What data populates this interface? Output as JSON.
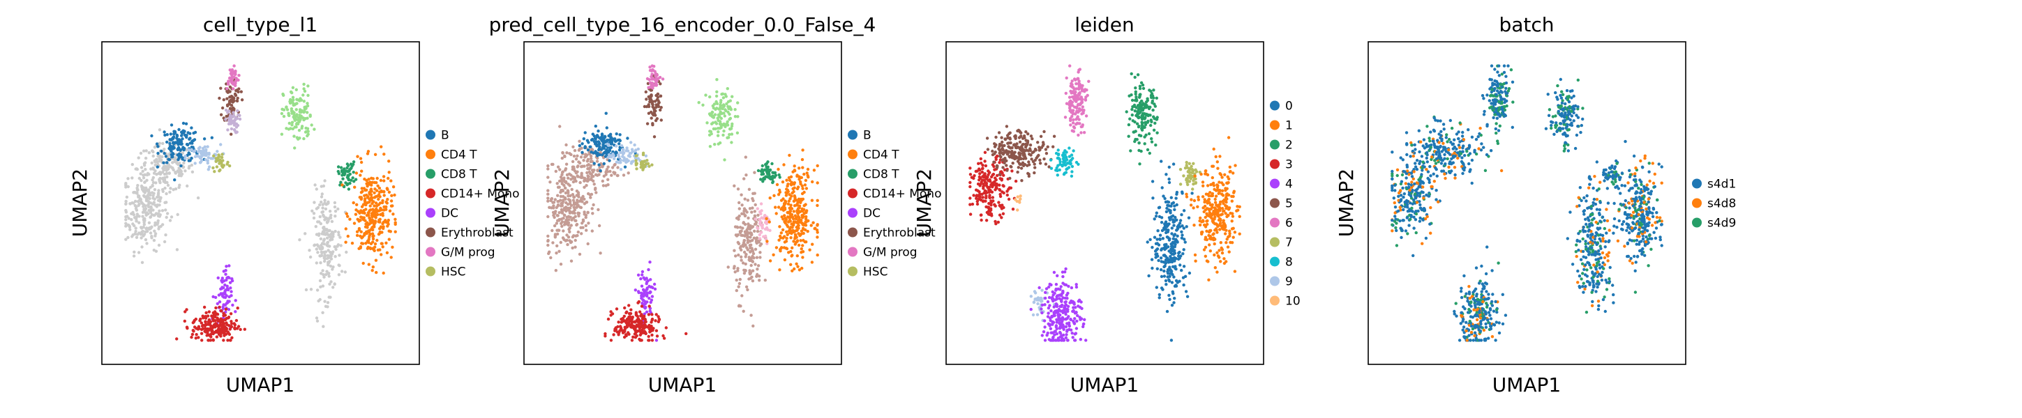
{
  "chart_data": [
    {
      "type": "scatter",
      "title": "cell_type_l1",
      "xlabel": "UMAP1",
      "ylabel": "UMAP2",
      "grid": false,
      "legend": "right",
      "legend_entries": [
        {
          "label": "B",
          "color": "#1f77b4"
        },
        {
          "label": "CD4 T",
          "color": "#ff7f0e"
        },
        {
          "label": "CD8 T",
          "color": "#279e68"
        },
        {
          "label": "CD14+ Mono",
          "color": "#d62728"
        },
        {
          "label": "DC",
          "color": "#aa40fc"
        },
        {
          "label": "Erythroblast",
          "color": "#8c564b"
        },
        {
          "label": "G/M prog",
          "color": "#e377c2"
        },
        {
          "label": "HSC",
          "color": "#b5bd61"
        }
      ],
      "clusters": [
        {
          "category": "unlabeled",
          "color": "#cccccc",
          "x": 0.1,
          "y": 0.48,
          "sx": 0.04,
          "sy": 0.07,
          "n": 260
        },
        {
          "category": "unlabeled",
          "color": "#cccccc",
          "x": 0.17,
          "y": 0.62,
          "sx": 0.05,
          "sy": 0.04,
          "n": 160
        },
        {
          "category": "B",
          "color": "#1f77b4",
          "x": 0.22,
          "y": 0.7,
          "sx": 0.035,
          "sy": 0.03,
          "n": 140
        },
        {
          "category": "B",
          "color": "#aec7e8",
          "x": 0.3,
          "y": 0.66,
          "sx": 0.03,
          "sy": 0.02,
          "n": 60
        },
        {
          "category": "HSC",
          "color": "#b5bd61",
          "x": 0.36,
          "y": 0.64,
          "sx": 0.015,
          "sy": 0.02,
          "n": 30
        },
        {
          "category": "Erythroblast",
          "color": "#8c564b",
          "x": 0.4,
          "y": 0.85,
          "sx": 0.015,
          "sy": 0.04,
          "n": 70
        },
        {
          "category": "G/M prog",
          "color": "#e377c2",
          "x": 0.4,
          "y": 0.93,
          "sx": 0.012,
          "sy": 0.02,
          "n": 40
        },
        {
          "category": "DC",
          "color": "#c5b0d5",
          "x": 0.4,
          "y": 0.78,
          "sx": 0.012,
          "sy": 0.02,
          "n": 40
        },
        {
          "category": "CD8 T",
          "color": "#98df8a",
          "x": 0.63,
          "y": 0.8,
          "sx": 0.025,
          "sy": 0.05,
          "n": 120
        },
        {
          "category": "CD8 T",
          "color": "#279e68",
          "x": 0.8,
          "y": 0.6,
          "sx": 0.015,
          "sy": 0.02,
          "n": 50
        },
        {
          "category": "unlabeled",
          "color": "#cccccc",
          "x": 0.73,
          "y": 0.36,
          "sx": 0.025,
          "sy": 0.09,
          "n": 200
        },
        {
          "category": "CD4 T",
          "color": "#ff7f0e",
          "x": 0.89,
          "y": 0.46,
          "sx": 0.035,
          "sy": 0.08,
          "n": 300
        },
        {
          "category": "DC",
          "color": "#aa40fc",
          "x": 0.37,
          "y": 0.18,
          "sx": 0.015,
          "sy": 0.05,
          "n": 70
        },
        {
          "category": "CD14+ Mono",
          "color": "#d62728",
          "x": 0.34,
          "y": 0.08,
          "sx": 0.04,
          "sy": 0.03,
          "n": 200
        }
      ]
    },
    {
      "type": "scatter",
      "title": "pred_cell_type_16_encoder_0.0_False_4",
      "xlabel": "UMAP1",
      "ylabel": "UMAP2",
      "grid": false,
      "legend": "right",
      "legend_entries": [
        {
          "label": "B",
          "color": "#1f77b4"
        },
        {
          "label": "CD4 T",
          "color": "#ff7f0e"
        },
        {
          "label": "CD8 T",
          "color": "#279e68"
        },
        {
          "label": "CD14+ Mono",
          "color": "#d62728"
        },
        {
          "label": "DC",
          "color": "#aa40fc"
        },
        {
          "label": "Erythroblast",
          "color": "#8c564b"
        },
        {
          "label": "G/M prog",
          "color": "#e377c2"
        },
        {
          "label": "HSC",
          "color": "#b5bd61"
        }
      ],
      "clusters": [
        {
          "category": "Erythroblast",
          "color": "#c49c94",
          "x": 0.1,
          "y": 0.48,
          "sx": 0.04,
          "sy": 0.07,
          "n": 260
        },
        {
          "category": "Erythroblast",
          "color": "#c49c94",
          "x": 0.17,
          "y": 0.62,
          "sx": 0.05,
          "sy": 0.04,
          "n": 160
        },
        {
          "category": "B",
          "color": "#1f77b4",
          "x": 0.22,
          "y": 0.7,
          "sx": 0.035,
          "sy": 0.03,
          "n": 140
        },
        {
          "category": "B",
          "color": "#aec7e8",
          "x": 0.3,
          "y": 0.66,
          "sx": 0.03,
          "sy": 0.02,
          "n": 60
        },
        {
          "category": "HSC",
          "color": "#b5bd61",
          "x": 0.36,
          "y": 0.64,
          "sx": 0.015,
          "sy": 0.02,
          "n": 30
        },
        {
          "category": "Erythroblast",
          "color": "#8c564b",
          "x": 0.4,
          "y": 0.85,
          "sx": 0.015,
          "sy": 0.04,
          "n": 70
        },
        {
          "category": "G/M prog",
          "color": "#e377c2",
          "x": 0.4,
          "y": 0.93,
          "sx": 0.012,
          "sy": 0.02,
          "n": 40
        },
        {
          "category": "CD8 T",
          "color": "#98df8a",
          "x": 0.63,
          "y": 0.8,
          "sx": 0.025,
          "sy": 0.05,
          "n": 120
        },
        {
          "category": "CD8 T",
          "color": "#279e68",
          "x": 0.8,
          "y": 0.6,
          "sx": 0.015,
          "sy": 0.02,
          "n": 50
        },
        {
          "category": "Erythroblast",
          "color": "#c49c94",
          "x": 0.73,
          "y": 0.36,
          "sx": 0.025,
          "sy": 0.09,
          "n": 200
        },
        {
          "category": "G/M prog",
          "color": "#f7b6d2",
          "x": 0.78,
          "y": 0.42,
          "sx": 0.015,
          "sy": 0.03,
          "n": 40
        },
        {
          "category": "CD4 T",
          "color": "#ff7f0e",
          "x": 0.89,
          "y": 0.46,
          "sx": 0.035,
          "sy": 0.08,
          "n": 300
        },
        {
          "category": "DC",
          "color": "#aa40fc",
          "x": 0.37,
          "y": 0.18,
          "sx": 0.015,
          "sy": 0.05,
          "n": 70
        },
        {
          "category": "CD14+ Mono",
          "color": "#d62728",
          "x": 0.34,
          "y": 0.08,
          "sx": 0.04,
          "sy": 0.03,
          "n": 200
        }
      ]
    },
    {
      "type": "scatter",
      "title": "leiden",
      "xlabel": "UMAP1",
      "ylabel": "UMAP2",
      "grid": false,
      "legend": "right",
      "legend_entries": [
        {
          "label": "0",
          "color": "#1f77b4"
        },
        {
          "label": "1",
          "color": "#ff7f0e"
        },
        {
          "label": "2",
          "color": "#279e68"
        },
        {
          "label": "3",
          "color": "#d62728"
        },
        {
          "label": "4",
          "color": "#aa40fc"
        },
        {
          "label": "5",
          "color": "#8c564b"
        },
        {
          "label": "6",
          "color": "#e377c2"
        },
        {
          "label": "7",
          "color": "#b5bd61"
        },
        {
          "label": "8",
          "color": "#17becf"
        },
        {
          "label": "9",
          "color": "#aec7e8"
        },
        {
          "label": "10",
          "color": "#ffbb78"
        }
      ],
      "clusters": [
        {
          "category": "3",
          "color": "#d62728",
          "x": 0.1,
          "y": 0.55,
          "sx": 0.035,
          "sy": 0.05,
          "n": 200
        },
        {
          "category": "5",
          "color": "#8c564b",
          "x": 0.2,
          "y": 0.68,
          "sx": 0.05,
          "sy": 0.035,
          "n": 220
        },
        {
          "category": "8",
          "color": "#17becf",
          "x": 0.36,
          "y": 0.64,
          "sx": 0.02,
          "sy": 0.025,
          "n": 60
        },
        {
          "category": "6",
          "color": "#e377c2",
          "x": 0.4,
          "y": 0.85,
          "sx": 0.018,
          "sy": 0.05,
          "n": 150
        },
        {
          "category": "2",
          "color": "#279e68",
          "x": 0.63,
          "y": 0.8,
          "sx": 0.025,
          "sy": 0.05,
          "n": 160
        },
        {
          "category": "7",
          "color": "#b5bd61",
          "x": 0.8,
          "y": 0.6,
          "sx": 0.015,
          "sy": 0.02,
          "n": 50
        },
        {
          "category": "0",
          "color": "#1f77b4",
          "x": 0.73,
          "y": 0.36,
          "sx": 0.03,
          "sy": 0.1,
          "n": 260
        },
        {
          "category": "1",
          "color": "#ff7f0e",
          "x": 0.89,
          "y": 0.46,
          "sx": 0.035,
          "sy": 0.08,
          "n": 300
        },
        {
          "category": "9",
          "color": "#aec7e8",
          "x": 0.27,
          "y": 0.15,
          "sx": 0.015,
          "sy": 0.03,
          "n": 30
        },
        {
          "category": "4",
          "color": "#aa40fc",
          "x": 0.35,
          "y": 0.12,
          "sx": 0.035,
          "sy": 0.06,
          "n": 250
        },
        {
          "category": "10",
          "color": "#ffbb78",
          "x": 0.2,
          "y": 0.5,
          "sx": 0.004,
          "sy": 0.01,
          "n": 8
        }
      ]
    },
    {
      "type": "scatter",
      "title": "batch",
      "xlabel": "UMAP1",
      "ylabel": "UMAP2",
      "grid": false,
      "legend": "right",
      "legend_entries": [
        {
          "label": "s4d1",
          "color": "#1f77b4"
        },
        {
          "label": "s4d8",
          "color": "#ff7f0e"
        },
        {
          "label": "s4d9",
          "color": "#279e68"
        }
      ],
      "clusters": [
        {
          "category": "mixed",
          "color": "#1f77b4",
          "mix": [
            "#279e68",
            "#ff7f0e"
          ],
          "x": 0.1,
          "y": 0.52,
          "sx": 0.04,
          "sy": 0.07,
          "n": 240
        },
        {
          "category": "mixed",
          "color": "#1f77b4",
          "mix": [
            "#279e68",
            "#ff7f0e"
          ],
          "x": 0.22,
          "y": 0.68,
          "sx": 0.06,
          "sy": 0.04,
          "n": 240
        },
        {
          "category": "mixed",
          "color": "#1f77b4",
          "mix": [
            "#279e68"
          ],
          "x": 0.4,
          "y": 0.85,
          "sx": 0.018,
          "sy": 0.05,
          "n": 150
        },
        {
          "category": "mixed",
          "color": "#1f77b4",
          "mix": [
            "#279e68"
          ],
          "x": 0.63,
          "y": 0.8,
          "sx": 0.025,
          "sy": 0.05,
          "n": 140
        },
        {
          "category": "mixed",
          "color": "#1f77b4",
          "mix": [
            "#279e68"
          ],
          "x": 0.8,
          "y": 0.6,
          "sx": 0.015,
          "sy": 0.02,
          "n": 50
        },
        {
          "category": "mixed",
          "color": "#1f77b4",
          "mix": [
            "#ff7f0e",
            "#279e68"
          ],
          "x": 0.73,
          "y": 0.36,
          "sx": 0.03,
          "sy": 0.1,
          "n": 260
        },
        {
          "category": "mixed",
          "color": "#1f77b4",
          "mix": [
            "#279e68",
            "#ff7f0e"
          ],
          "x": 0.89,
          "y": 0.46,
          "sx": 0.035,
          "sy": 0.08,
          "n": 300
        },
        {
          "category": "mixed",
          "color": "#1f77b4",
          "mix": [
            "#ff7f0e",
            "#279e68"
          ],
          "x": 0.33,
          "y": 0.12,
          "sx": 0.035,
          "sy": 0.06,
          "n": 240
        }
      ]
    }
  ]
}
